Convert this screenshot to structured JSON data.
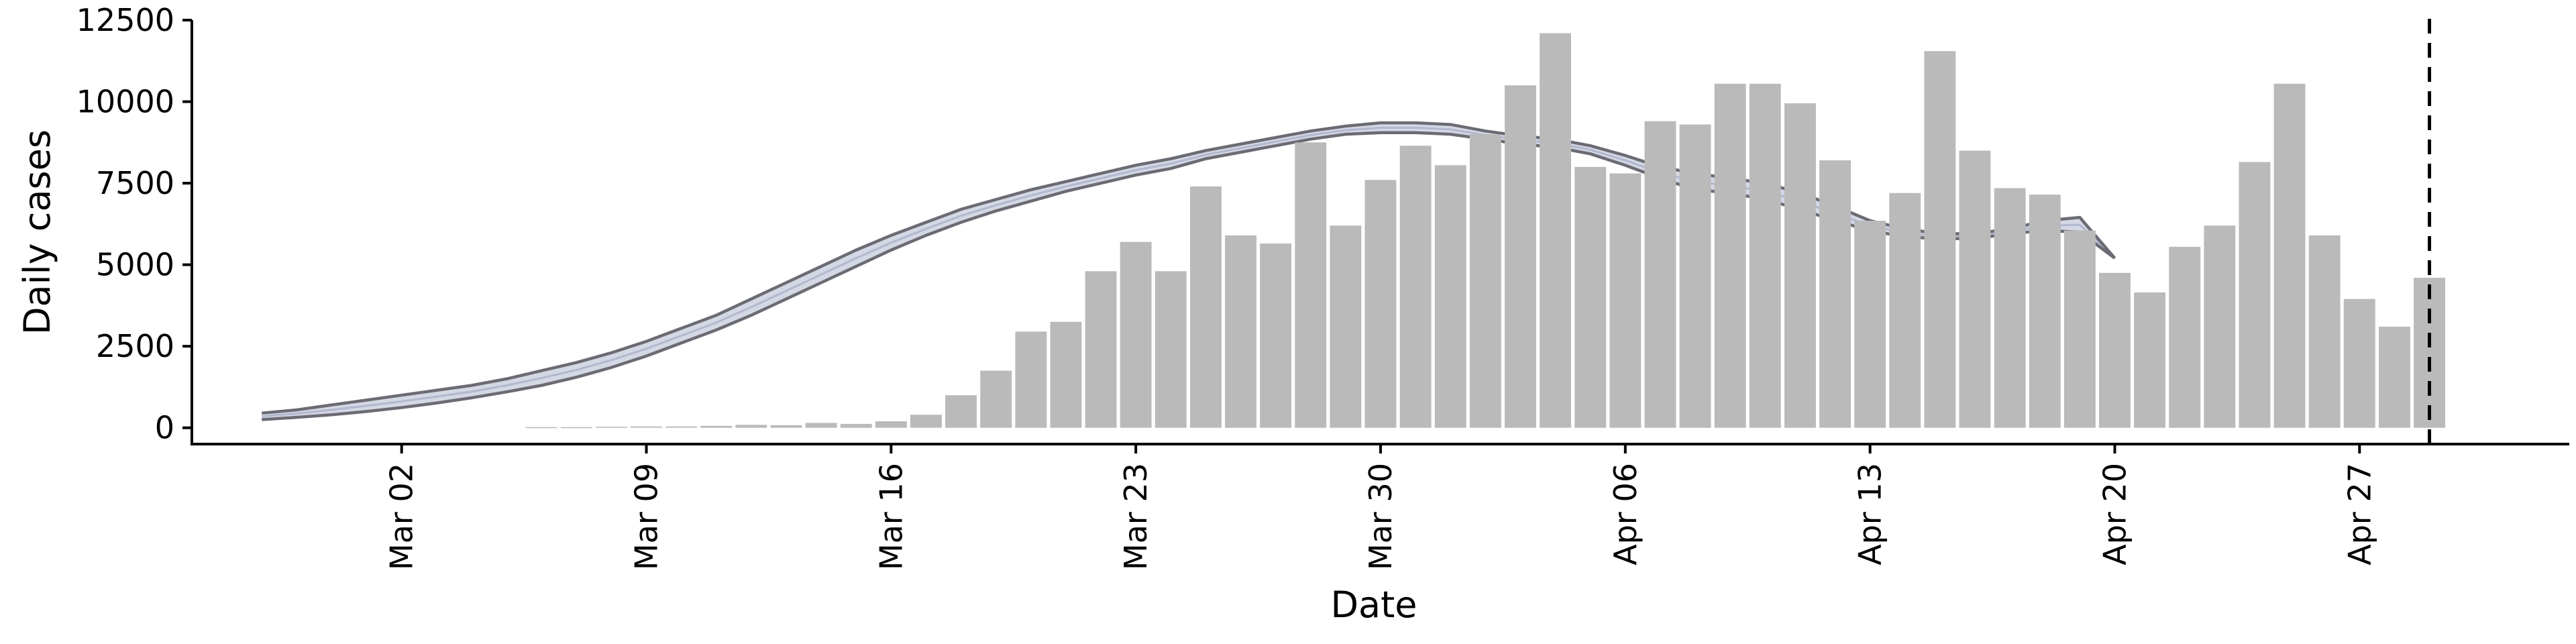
{
  "chart_data": {
    "type": "bar",
    "xlabel": "Date",
    "ylabel": "Daily cases",
    "ylim": [
      -500,
      12500
    ],
    "yticks": [
      0,
      2500,
      5000,
      7500,
      10000,
      12500
    ],
    "xlim": [
      "2020-02-25",
      "2020-05-03"
    ],
    "xtick_labels": [
      "Mar 02",
      "Mar 09",
      "Mar 16",
      "Mar 23",
      "Mar 30",
      "Apr 06",
      "Apr 13",
      "Apr 20",
      "Apr 27"
    ],
    "xtick_dates": [
      "2020-03-02",
      "2020-03-09",
      "2020-03-16",
      "2020-03-23",
      "2020-03-30",
      "2020-04-06",
      "2020-04-13",
      "2020-04-20",
      "2020-04-27"
    ],
    "grid": false,
    "vline_date": "2020-04-29",
    "colors": {
      "bar": "#bababa",
      "band_outline": "#6b6b74",
      "band_fill": "#c5cadb",
      "vline": "#000000"
    },
    "bars": {
      "dates": [
        "2020-03-06",
        "2020-03-07",
        "2020-03-08",
        "2020-03-09",
        "2020-03-10",
        "2020-03-11",
        "2020-03-12",
        "2020-03-13",
        "2020-03-14",
        "2020-03-15",
        "2020-03-16",
        "2020-03-17",
        "2020-03-18",
        "2020-03-19",
        "2020-03-20",
        "2020-03-21",
        "2020-03-22",
        "2020-03-23",
        "2020-03-24",
        "2020-03-25",
        "2020-03-26",
        "2020-03-27",
        "2020-03-28",
        "2020-03-29",
        "2020-03-30",
        "2020-03-31",
        "2020-04-01",
        "2020-04-02",
        "2020-04-03",
        "2020-04-04",
        "2020-04-05",
        "2020-04-06",
        "2020-04-07",
        "2020-04-08",
        "2020-04-09",
        "2020-04-10",
        "2020-04-11",
        "2020-04-12",
        "2020-04-13",
        "2020-04-14",
        "2020-04-15",
        "2020-04-16",
        "2020-04-17",
        "2020-04-18",
        "2020-04-19",
        "2020-04-20",
        "2020-04-21",
        "2020-04-22",
        "2020-04-23",
        "2020-04-24",
        "2020-04-25",
        "2020-04-26",
        "2020-04-27",
        "2020-04-28",
        "2020-04-29"
      ],
      "values": [
        20,
        20,
        30,
        40,
        40,
        60,
        90,
        80,
        150,
        120,
        200,
        400,
        1000,
        1750,
        2950,
        3250,
        4800,
        5700,
        4800,
        7400,
        5900,
        5650,
        8750,
        6200,
        7600,
        8650,
        8050,
        9000,
        10500,
        12100,
        8000,
        7800,
        9400,
        9300,
        10550,
        10550,
        9950,
        8200,
        6350,
        7200,
        11550,
        8500,
        7350,
        7150,
        6050,
        4750,
        4150,
        5550,
        6200,
        8150,
        10550,
        5900,
        3950,
        3100,
        4600
      ]
    },
    "band": {
      "dates": [
        "2020-02-27",
        "2020-02-28",
        "2020-02-29",
        "2020-03-01",
        "2020-03-02",
        "2020-03-03",
        "2020-03-04",
        "2020-03-05",
        "2020-03-06",
        "2020-03-07",
        "2020-03-08",
        "2020-03-09",
        "2020-03-10",
        "2020-03-11",
        "2020-03-12",
        "2020-03-13",
        "2020-03-14",
        "2020-03-15",
        "2020-03-16",
        "2020-03-17",
        "2020-03-18",
        "2020-03-19",
        "2020-03-20",
        "2020-03-21",
        "2020-03-22",
        "2020-03-23",
        "2020-03-24",
        "2020-03-25",
        "2020-03-26",
        "2020-03-27",
        "2020-03-28",
        "2020-03-29",
        "2020-03-30",
        "2020-03-31",
        "2020-04-01",
        "2020-04-02",
        "2020-04-03",
        "2020-04-04",
        "2020-04-05",
        "2020-04-06",
        "2020-04-07",
        "2020-04-08",
        "2020-04-09",
        "2020-04-10",
        "2020-04-11",
        "2020-04-12",
        "2020-04-13",
        "2020-04-14",
        "2020-04-15",
        "2020-04-16",
        "2020-04-17",
        "2020-04-18",
        "2020-04-19",
        "2020-04-20"
      ],
      "upper": [
        450,
        550,
        700,
        850,
        1000,
        1150,
        1300,
        1500,
        1750,
        2000,
        2300,
        2650,
        3050,
        3450,
        3950,
        4450,
        4950,
        5450,
        5900,
        6300,
        6700,
        7000,
        7300,
        7550,
        7800,
        8050,
        8250,
        8500,
        8700,
        8900,
        9100,
        9250,
        9350,
        9350,
        9300,
        9100,
        8950,
        8850,
        8650,
        8350,
        8000,
        7800,
        7650,
        7500,
        7200,
        6800,
        6350,
        6100,
        5950,
        5950,
        6100,
        6350,
        6450,
        5200
      ],
      "lower": [
        250,
        320,
        400,
        500,
        620,
        760,
        920,
        1100,
        1300,
        1550,
        1850,
        2200,
        2600,
        3000,
        3450,
        3950,
        4450,
        4950,
        5450,
        5900,
        6300,
        6650,
        6950,
        7250,
        7500,
        7750,
        7950,
        8250,
        8450,
        8650,
        8850,
        9000,
        9050,
        9050,
        9000,
        8850,
        8700,
        8600,
        8400,
        8050,
        7650,
        7300,
        7200,
        7000,
        6700,
        6350,
        6050,
        5850,
        5800,
        5800,
        5950,
        6050,
        6000,
        5200
      ]
    }
  }
}
